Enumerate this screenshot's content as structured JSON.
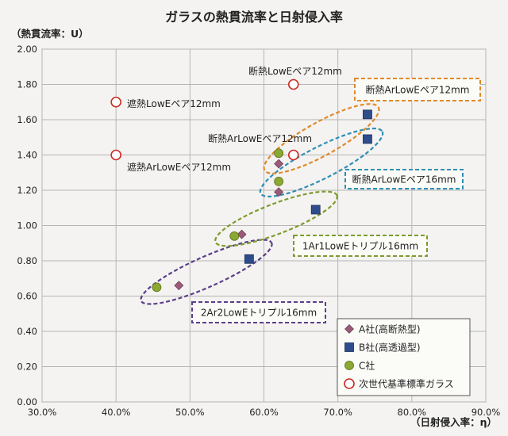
{
  "chart_data": {
    "type": "scatter",
    "title": "ガラスの熱貫流率と日射侵入率",
    "ylabel": "（熱貫流率：U）",
    "xlabel": "（日射侵入率：η）",
    "xlim": [
      0.3,
      0.9
    ],
    "ylim": [
      0.0,
      2.0
    ],
    "x_ticks": [
      "30.0%",
      "40.0%",
      "50.0%",
      "60.0%",
      "70.0%",
      "80.0%",
      "90.0%"
    ],
    "y_ticks": [
      "0.00",
      "0.20",
      "0.40",
      "0.60",
      "0.80",
      "1.00",
      "1.20",
      "1.40",
      "1.60",
      "1.80",
      "2.00"
    ],
    "grid": true,
    "legend_position": "bottom-right",
    "series": [
      {
        "name": "A社(高断熱型)",
        "marker": "diamond",
        "color": "#9a5a78",
        "points": [
          [
            0.485,
            0.66
          ],
          [
            0.57,
            0.95
          ],
          [
            0.62,
            1.19
          ],
          [
            0.62,
            1.35
          ]
        ]
      },
      {
        "name": "B社(高透過型)",
        "marker": "square",
        "color": "#2e4d8c",
        "points": [
          [
            0.58,
            0.81
          ],
          [
            0.67,
            1.09
          ],
          [
            0.74,
            1.49
          ],
          [
            0.74,
            1.63
          ]
        ]
      },
      {
        "name": "C社",
        "marker": "circle",
        "color": "#8aa832",
        "points": [
          [
            0.455,
            0.65
          ],
          [
            0.56,
            0.94
          ],
          [
            0.62,
            1.25
          ],
          [
            0.62,
            1.41
          ]
        ]
      },
      {
        "name": "次世代基準標準ガラス",
        "marker": "ring",
        "color": "#cc2a22",
        "points": [
          [
            0.4,
            1.7
          ],
          [
            0.4,
            1.4
          ],
          [
            0.64,
            1.8
          ],
          [
            0.64,
            1.4
          ]
        ]
      }
    ],
    "groups": [
      {
        "label": "2Ar2LowEトリプル16mm",
        "color": "#5b3f8a"
      },
      {
        "label": "1Ar1LowEトリプル16mm",
        "color": "#7d9b2e"
      },
      {
        "label": "断熱ArLowEペア16mm",
        "color": "#2f8fb5"
      },
      {
        "label": "断熱ArLowEペア12mm",
        "color": "#e08a2a"
      }
    ],
    "annotations": [
      "断熱LowEペア12mm",
      "遮熱LowEペア12mm",
      "遮熱ArLowEペア12mm",
      "断熱ArLowEペア12mm"
    ]
  }
}
